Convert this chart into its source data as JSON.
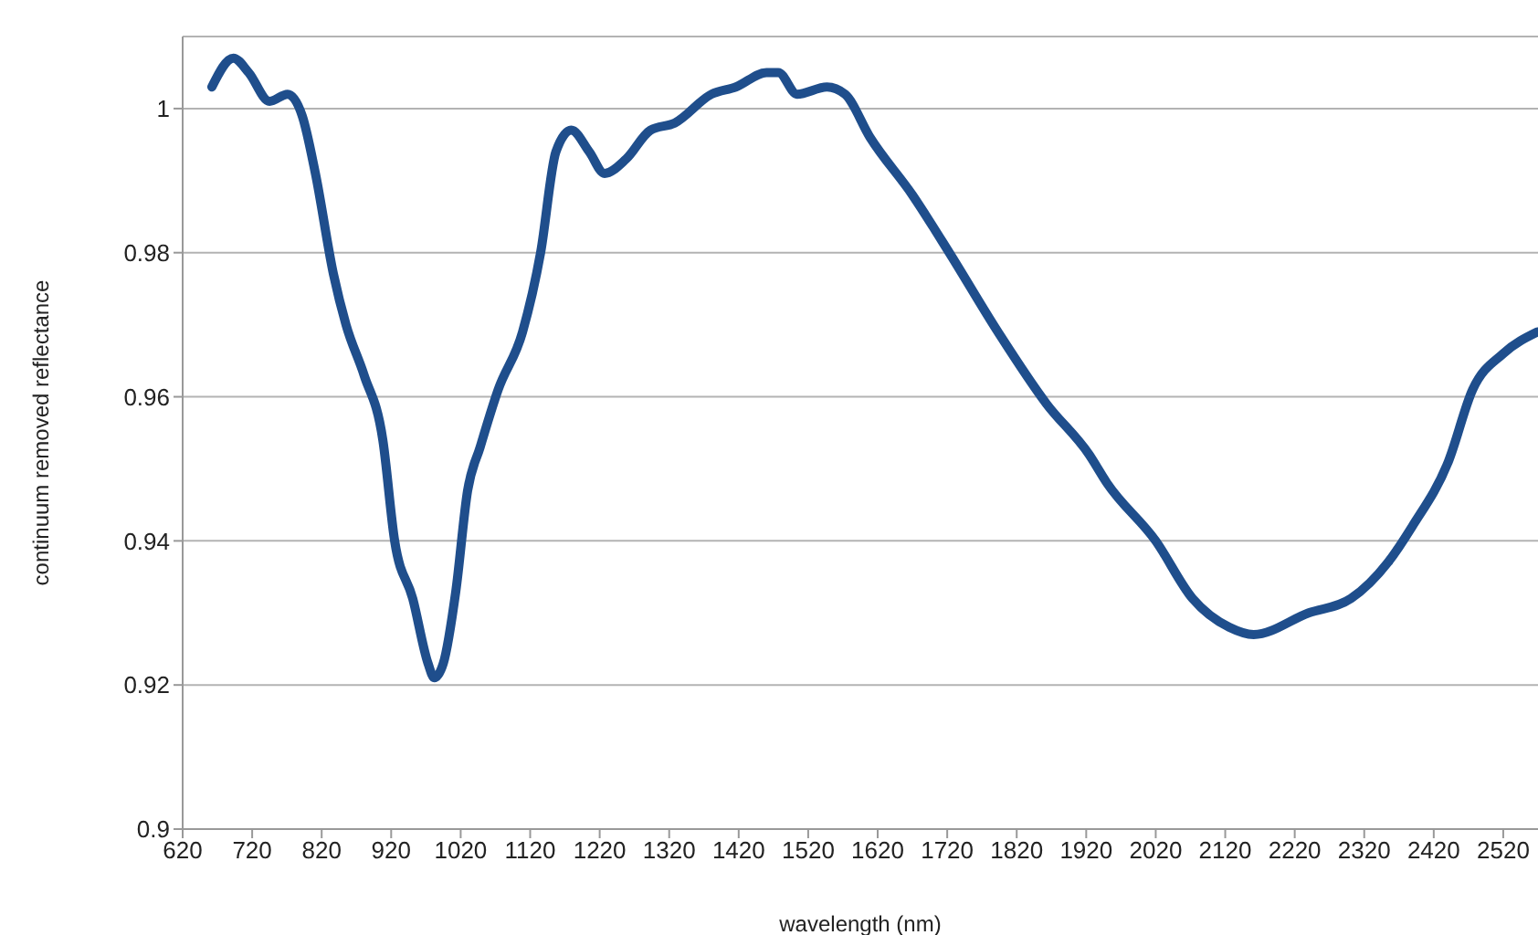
{
  "chart_data": {
    "type": "line",
    "xlabel": "wavelength (nm)",
    "ylabel": "continuum removed reflectance",
    "xlim": [
      620,
      2570
    ],
    "xticks": [
      620,
      720,
      820,
      920,
      1020,
      1120,
      1220,
      1320,
      1420,
      1520,
      1620,
      1720,
      1820,
      1920,
      2020,
      2120,
      2220,
      2320,
      2420,
      2520
    ],
    "ylim": [
      0.9,
      1.01
    ],
    "yticks": [
      0.9,
      0.92,
      0.94,
      0.96,
      0.98,
      1
    ],
    "grid": "y",
    "marker": "none",
    "line_style": "solid",
    "series": [
      {
        "color": "#1f4e8c",
        "x": [
          662,
          693,
          715,
          745,
          771,
          792,
          811,
          837,
          855,
          881,
          908,
          925,
          951,
          973,
          982,
          995,
          1013,
          1030,
          1048,
          1074,
          1109,
          1135,
          1157,
          1179,
          1205,
          1227,
          1258,
          1293,
          1328,
          1381,
          1416,
          1460,
          1477,
          1504,
          1547,
          1573,
          1609,
          1670,
          1723,
          1793,
          1863,
          1924,
          1950,
          2020,
          2073,
          2126,
          2161,
          2240,
          2301,
          2354,
          2389,
          2441,
          2476,
          2520,
          2569
        ],
        "values": [
          1.003,
          1.007,
          1.005,
          1.001,
          1.002,
          0.999,
          0.991,
          0.977,
          0.97,
          0.963,
          0.954,
          0.94,
          0.932,
          0.923,
          0.921,
          0.923,
          0.933,
          0.947,
          0.953,
          0.961,
          0.969,
          0.98,
          0.994,
          0.997,
          0.994,
          0.991,
          0.993,
          0.997,
          0.998,
          1.002,
          1.003,
          1.005,
          1.005,
          1.002,
          1.003,
          1.002,
          0.996,
          0.988,
          0.98,
          0.969,
          0.959,
          0.952,
          0.948,
          0.94,
          0.932,
          0.928,
          0.927,
          0.93,
          0.932,
          0.937,
          0.942,
          0.951,
          0.961,
          0.966,
          0.969
        ]
      }
    ]
  }
}
